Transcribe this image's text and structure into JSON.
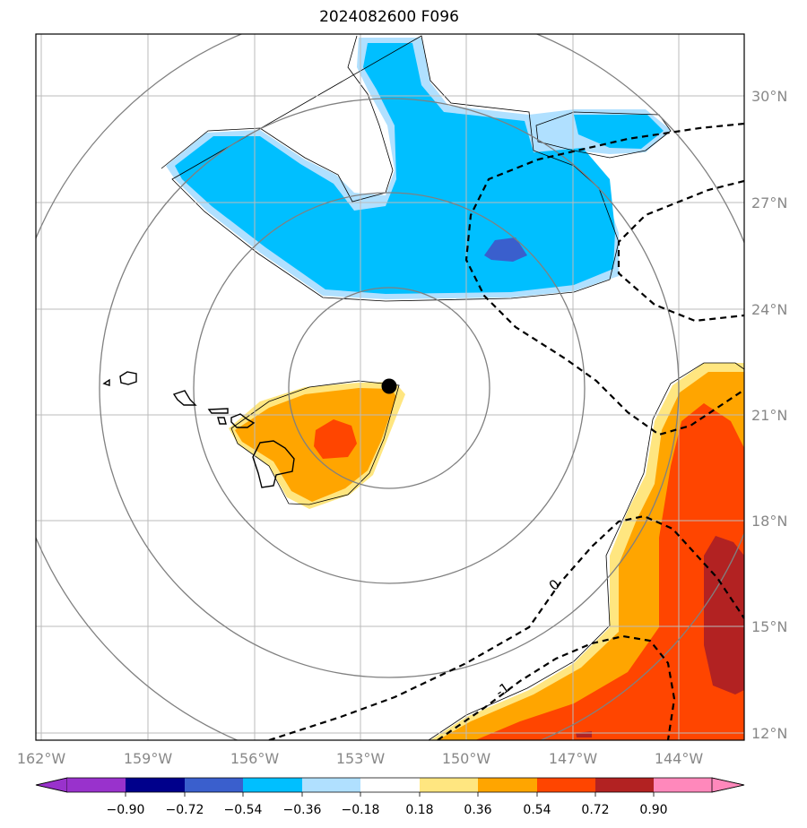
{
  "title": "2024082600 F096",
  "map": {
    "lon_ticks": [
      "162°W",
      "159°W",
      "156°W",
      "153°W",
      "150°W",
      "147°W",
      "144°W"
    ],
    "lat_ticks": [
      "30°N",
      "27°N",
      "24°N",
      "21°N",
      "18°N",
      "15°N",
      "12°N"
    ],
    "contour_labels": [
      "0",
      "-1"
    ],
    "gridline_color": "#bbbbbb",
    "ring_color": "#808080",
    "fill_colors": {
      "neg_036_054": "#00bfff",
      "neg_018_036": "#b0e0ff",
      "neg_054_072": "#3a5fcd",
      "pos_018_036": "#ffe680",
      "pos_036_054": "#ffa500",
      "pos_054_072": "#ff4500",
      "pos_072_090": "#b22222"
    }
  },
  "colorbar": {
    "labels": [
      "−0.90",
      "−0.72",
      "−0.54",
      "−0.36",
      "−0.18",
      "0.18",
      "0.36",
      "0.54",
      "0.72",
      "0.90"
    ],
    "colors": [
      "#9932cc",
      "#00008b",
      "#3a5fcd",
      "#00bfff",
      "#b0e0ff",
      "#ffffff",
      "#ffe680",
      "#ffa500",
      "#ff4500",
      "#b22222",
      "#ff88bb"
    ]
  }
}
